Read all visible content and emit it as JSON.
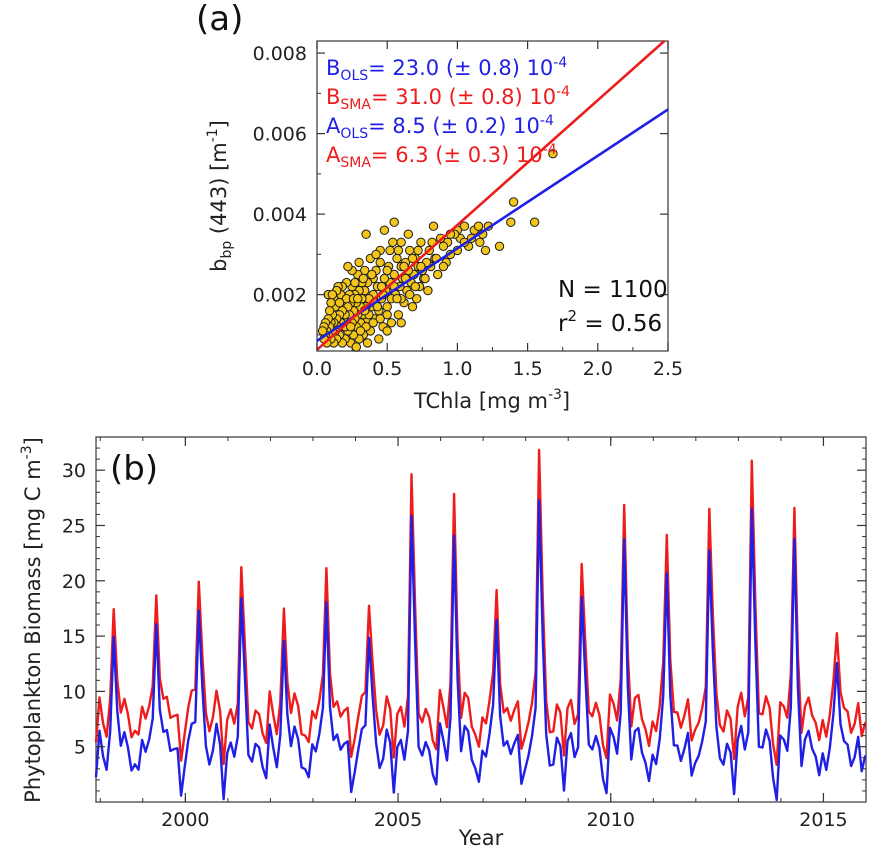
{
  "colors": {
    "ols": "#1f1fe6",
    "sma": "#ee1c1c",
    "point_fill": "#f2c518",
    "point_edge": "#1a1a1a",
    "axis": "#333333"
  },
  "chart_data": [
    {
      "type": "scatter",
      "panel_label": "(a)",
      "xlabel": "TChla [mg m",
      "xlabel_sup": "-3",
      "xlabel_end": "]",
      "ylabel_main": "b",
      "ylabel_sub": "bp",
      "ylabel_rest": " (443) [m",
      "ylabel_sup": "-1",
      "ylabel_end": "]",
      "xlim": [
        0,
        2.5
      ],
      "ylim": [
        0.0006,
        0.0083
      ],
      "xticks": [
        0.0,
        0.5,
        1.0,
        1.5,
        2.0,
        2.5
      ],
      "xtick_labels": [
        "0.0",
        "0.5",
        "1.0",
        "1.5",
        "2.0",
        "2.5"
      ],
      "yticks": [
        0.002,
        0.004,
        0.006,
        0.008
      ],
      "ytick_labels": [
        "0.002",
        "0.004",
        "0.006",
        "0.008"
      ],
      "annotations": [
        {
          "main": "B",
          "sub": "OLS",
          "text": "= 23.0 (± 0.8) 10",
          "sup": "-4",
          "series": "ols"
        },
        {
          "main": "B",
          "sub": "SMA",
          "text": "= 31.0 (± 0.8) 10",
          "sup": "-4",
          "series": "sma"
        },
        {
          "main": "A",
          "sub": "OLS",
          "text": "= 8.5 (± 0.2) 10",
          "sup": "-4",
          "series": "ols"
        },
        {
          "main": "A",
          "sub": "SMA",
          "text": "= 6.3 (± 0.3) 10",
          "sup": "-4",
          "series": "sma"
        }
      ],
      "stats": {
        "n_text": "N = 1100",
        "r2_main": "r",
        "r2_sup": "2",
        "r2_text": " = 0.56"
      },
      "lines": [
        {
          "series": "ols",
          "slope": 0.0023,
          "intercept": 0.00085
        },
        {
          "series": "sma",
          "slope": 0.0031,
          "intercept": 0.00063
        }
      ],
      "points": [
        [
          1.68,
          0.0055
        ],
        [
          1.55,
          0.0038
        ],
        [
          1.4,
          0.0043
        ],
        [
          1.38,
          0.0038
        ],
        [
          1.3,
          0.0032
        ],
        [
          1.22,
          0.0037
        ],
        [
          1.18,
          0.0035
        ],
        [
          1.16,
          0.0033
        ],
        [
          1.12,
          0.0036
        ],
        [
          1.08,
          0.0032
        ],
        [
          1.05,
          0.0037
        ],
        [
          1.02,
          0.0034
        ],
        [
          1.0,
          0.0036
        ],
        [
          0.98,
          0.0035
        ],
        [
          0.95,
          0.003
        ],
        [
          0.93,
          0.0033
        ],
        [
          0.92,
          0.0028
        ],
        [
          0.9,
          0.0032
        ],
        [
          0.88,
          0.0034
        ],
        [
          0.86,
          0.0025
        ],
        [
          0.84,
          0.0029
        ],
        [
          0.83,
          0.0037
        ],
        [
          0.81,
          0.0027
        ],
        [
          0.8,
          0.0031
        ],
        [
          0.79,
          0.0021
        ],
        [
          0.78,
          0.0028
        ],
        [
          0.76,
          0.0024
        ],
        [
          0.75,
          0.0026
        ],
        [
          0.74,
          0.0033
        ],
        [
          0.73,
          0.0022
        ],
        [
          0.72,
          0.0027
        ],
        [
          0.71,
          0.0019
        ],
        [
          0.7,
          0.0029
        ],
        [
          0.69,
          0.0025
        ],
        [
          0.68,
          0.0017
        ],
        [
          0.67,
          0.0023
        ],
        [
          0.66,
          0.0031
        ],
        [
          0.65,
          0.0026
        ],
        [
          0.64,
          0.0021
        ],
        [
          0.63,
          0.0028
        ],
        [
          0.62,
          0.0018
        ],
        [
          0.61,
          0.0024
        ],
        [
          0.6,
          0.0027
        ],
        [
          0.59,
          0.0022
        ],
        [
          0.58,
          0.0015
        ],
        [
          0.57,
          0.0029
        ],
        [
          0.56,
          0.002
        ],
        [
          0.55,
          0.0025
        ],
        [
          0.54,
          0.0033
        ],
        [
          0.53,
          0.0019
        ],
        [
          0.52,
          0.0023
        ],
        [
          0.51,
          0.0027
        ],
        [
          0.5,
          0.0017
        ],
        [
          0.49,
          0.0021
        ],
        [
          0.48,
          0.0024
        ],
        [
          0.47,
          0.0012
        ],
        [
          0.46,
          0.0019
        ],
        [
          0.45,
          0.0031
        ],
        [
          0.44,
          0.0016
        ],
        [
          0.43,
          0.0022
        ],
        [
          0.42,
          0.0026
        ],
        [
          0.41,
          0.0014
        ],
        [
          0.4,
          0.002
        ],
        [
          0.4,
          0.0024
        ],
        [
          0.39,
          0.0017
        ],
        [
          0.38,
          0.0011
        ],
        [
          0.38,
          0.0029
        ],
        [
          0.37,
          0.0019
        ],
        [
          0.36,
          0.0023
        ],
        [
          0.36,
          0.0014
        ],
        [
          0.35,
          0.0017
        ],
        [
          0.34,
          0.0021
        ],
        [
          0.34,
          0.0026
        ],
        [
          0.33,
          0.001
        ],
        [
          0.33,
          0.0015
        ],
        [
          0.32,
          0.0019
        ],
        [
          0.32,
          0.0023
        ],
        [
          0.31,
          0.0013
        ],
        [
          0.31,
          0.0017
        ],
        [
          0.3,
          0.0021
        ],
        [
          0.3,
          0.0009
        ],
        [
          0.29,
          0.0015
        ],
        [
          0.29,
          0.0025
        ],
        [
          0.28,
          0.0012
        ],
        [
          0.28,
          0.0018
        ],
        [
          0.27,
          0.002
        ],
        [
          0.27,
          0.0014
        ],
        [
          0.26,
          0.001
        ],
        [
          0.26,
          0.0016
        ],
        [
          0.25,
          0.0022
        ],
        [
          0.25,
          0.0013
        ],
        [
          0.24,
          0.0018
        ],
        [
          0.24,
          0.0008
        ],
        [
          0.23,
          0.0015
        ],
        [
          0.23,
          0.002
        ],
        [
          0.22,
          0.0011
        ],
        [
          0.22,
          0.0017
        ],
        [
          0.21,
          0.0013
        ],
        [
          0.21,
          0.0023
        ],
        [
          0.2,
          0.0009
        ],
        [
          0.2,
          0.0015
        ],
        [
          0.19,
          0.0019
        ],
        [
          0.19,
          0.0012
        ],
        [
          0.18,
          0.0016
        ],
        [
          0.18,
          0.0008
        ],
        [
          0.17,
          0.0013
        ],
        [
          0.17,
          0.002
        ],
        [
          0.16,
          0.001
        ],
        [
          0.16,
          0.0015
        ],
        [
          0.15,
          0.0012
        ],
        [
          0.15,
          0.0018
        ],
        [
          0.14,
          0.0009
        ],
        [
          0.14,
          0.0014
        ],
        [
          0.13,
          0.0011
        ],
        [
          0.13,
          0.0017
        ],
        [
          0.12,
          0.0013
        ],
        [
          0.12,
          0.0008
        ],
        [
          0.11,
          0.0015
        ],
        [
          0.11,
          0.0011
        ],
        [
          0.1,
          0.0013
        ],
        [
          0.1,
          0.0009
        ],
        [
          0.09,
          0.0016
        ],
        [
          0.09,
          0.0012
        ],
        [
          0.08,
          0.001
        ],
        [
          0.08,
          0.0014
        ],
        [
          0.07,
          0.0011
        ],
        [
          0.07,
          0.0008
        ],
        [
          0.06,
          0.0013
        ],
        [
          0.06,
          0.001
        ],
        [
          0.05,
          0.0012
        ],
        [
          0.05,
          0.0009
        ],
        [
          0.04,
          0.0011
        ],
        [
          0.35,
          0.0035
        ],
        [
          0.42,
          0.003
        ],
        [
          0.48,
          0.0036
        ],
        [
          0.52,
          0.0031
        ],
        [
          0.45,
          0.0028
        ],
        [
          0.6,
          0.0033
        ],
        [
          0.65,
          0.0035
        ],
        [
          0.55,
          0.0038
        ],
        [
          0.58,
          0.0031
        ],
        [
          0.3,
          0.0028
        ],
        [
          0.25,
          0.0026
        ],
        [
          0.44,
          0.0009
        ],
        [
          0.5,
          0.0011
        ],
        [
          0.6,
          0.0013
        ],
        [
          0.53,
          0.0013
        ],
        [
          0.36,
          0.0008
        ],
        [
          0.28,
          0.0007
        ],
        [
          0.18,
          0.0022
        ],
        [
          0.22,
          0.0027
        ],
        [
          0.35,
          0.0012
        ],
        [
          0.41,
          0.0018
        ],
        [
          0.46,
          0.0022
        ],
        [
          0.5,
          0.0026
        ],
        [
          0.39,
          0.0025
        ],
        [
          0.33,
          0.0024
        ],
        [
          0.27,
          0.0023
        ],
        [
          0.21,
          0.0019
        ],
        [
          0.15,
          0.0022
        ],
        [
          0.12,
          0.0019
        ],
        [
          0.1,
          0.0018
        ],
        [
          0.08,
          0.002
        ],
        [
          0.6,
          0.0019
        ],
        [
          0.63,
          0.0024
        ],
        [
          0.7,
          0.0022
        ],
        [
          0.72,
          0.0031
        ],
        [
          0.77,
          0.0024
        ],
        [
          0.82,
          0.0033
        ],
        [
          0.85,
          0.0029
        ],
        [
          0.9,
          0.0027
        ],
        [
          0.95,
          0.0035
        ],
        [
          1.0,
          0.0031
        ],
        [
          1.05,
          0.0033
        ],
        [
          1.1,
          0.0034
        ],
        [
          1.15,
          0.0037
        ],
        [
          1.2,
          0.0031
        ],
        [
          0.55,
          0.0022
        ],
        [
          0.45,
          0.0014
        ],
        [
          0.37,
          0.0015
        ],
        [
          0.31,
          0.0011
        ],
        [
          0.26,
          0.0019
        ],
        [
          0.2,
          0.0012
        ],
        [
          0.16,
          0.0018
        ],
        [
          0.14,
          0.0021
        ],
        [
          0.11,
          0.002
        ],
        [
          0.24,
          0.0012
        ],
        [
          0.29,
          0.0019
        ],
        [
          0.34,
          0.0016
        ],
        [
          0.4,
          0.0013
        ],
        [
          0.43,
          0.0017
        ],
        [
          0.47,
          0.002
        ],
        [
          0.5,
          0.0015
        ],
        [
          0.57,
          0.0019
        ],
        [
          0.62,
          0.0027
        ],
        [
          0.68,
          0.0029
        ],
        [
          0.74,
          0.0027
        ],
        [
          0.66,
          0.002
        ]
      ]
    },
    {
      "type": "line",
      "panel_label": "(b)",
      "xlabel": "Year",
      "ylabel": "Phytoplankton Biomass [mg C m",
      "ylabel_sup": "-3",
      "ylabel_end": "]",
      "xlim": [
        1997.9,
        2016
      ],
      "ylim": [
        0,
        33
      ],
      "xticks": [
        2000,
        2005,
        2010,
        2015
      ],
      "xtick_labels": [
        "2000",
        "2005",
        "2010",
        "2015"
      ],
      "yticks": [
        5,
        10,
        15,
        20,
        25,
        30
      ],
      "ytick_labels": [
        "5",
        "10",
        "15",
        "20",
        "25",
        "30"
      ],
      "peaks": [
        {
          "year": 1998,
          "sma": 16.5,
          "ols": 14.0
        },
        {
          "year": 1999,
          "sma": 20.8,
          "ols": 18.2
        },
        {
          "year": 2000,
          "sma": 21.3,
          "ols": 18.7
        },
        {
          "year": 2001,
          "sma": 20.1,
          "ols": 17.3
        },
        {
          "year": 2002,
          "sma": 17.2,
          "ols": 14.3
        },
        {
          "year": 2003,
          "sma": 23.0,
          "ols": 19.9
        },
        {
          "year": 2004,
          "sma": 18.5,
          "ols": 15.6
        },
        {
          "year": 2005,
          "sma": 29.4,
          "ols": 25.6
        },
        {
          "year": 2006,
          "sma": 28.3,
          "ols": 24.5
        },
        {
          "year": 2007,
          "sma": 20.2,
          "ols": 17.5
        },
        {
          "year": 2008,
          "sma": 33.0,
          "ols": 28.4
        },
        {
          "year": 2009,
          "sma": 21.8,
          "ols": 18.8
        },
        {
          "year": 2010,
          "sma": 27.1,
          "ols": 24.0
        },
        {
          "year": 2011,
          "sma": 24.6,
          "ols": 21.1
        },
        {
          "year": 2012,
          "sma": 27.9,
          "ols": 24.1
        },
        {
          "year": 2013,
          "sma": 32.1,
          "ols": 27.7
        },
        {
          "year": 2014,
          "sma": 26.2,
          "ols": 23.4
        },
        {
          "year": 2015,
          "sma": 15.0,
          "ols": 12.3
        }
      ]
    }
  ]
}
